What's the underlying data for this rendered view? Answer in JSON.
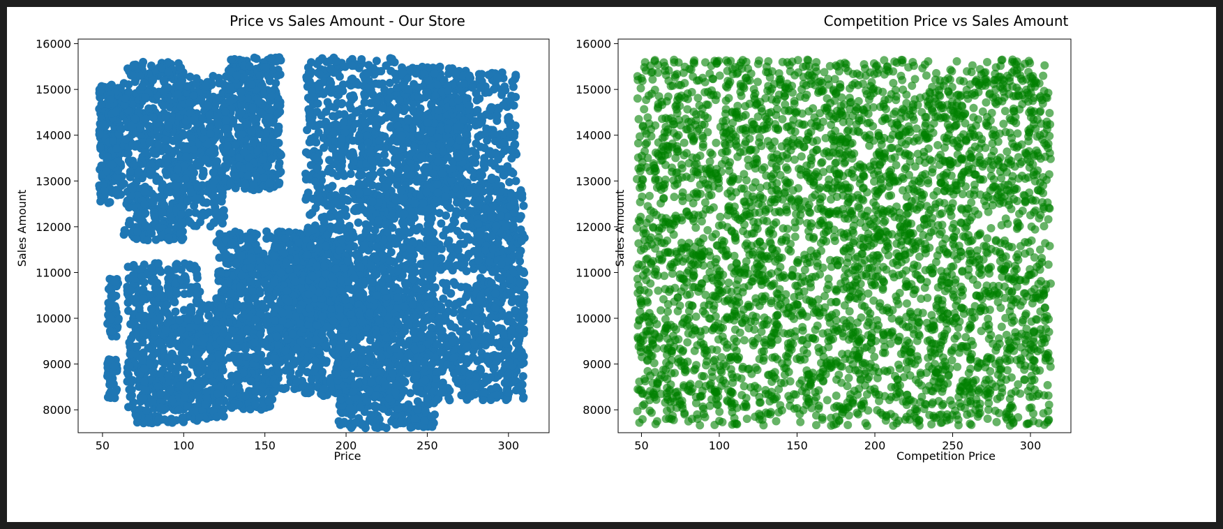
{
  "chart_data": [
    {
      "type": "scatter",
      "title": "Price vs Sales Amount - Our Store",
      "xlabel": "Price",
      "ylabel": "Sales Amount",
      "xlim": [
        35,
        325
      ],
      "ylim": [
        7500,
        16100
      ],
      "xticks": [
        50,
        100,
        150,
        200,
        250,
        300
      ],
      "yticks": [
        8000,
        9000,
        10000,
        11000,
        12000,
        13000,
        14000,
        15000,
        16000
      ],
      "color": "#1f77b4",
      "alpha": 1.0,
      "grid": false,
      "clusters": [
        {
          "x": [
            48,
            62
          ],
          "y": [
            12500,
            15100
          ],
          "n": 260
        },
        {
          "x": [
            53,
            60
          ],
          "y": [
            9600,
            10900
          ],
          "n": 50
        },
        {
          "x": [
            53,
            59
          ],
          "y": [
            8250,
            9100
          ],
          "n": 45
        },
        {
          "x": [
            63,
            100
          ],
          "y": [
            11700,
            15600
          ],
          "n": 520
        },
        {
          "x": [
            65,
            110
          ],
          "y": [
            7700,
            11200
          ],
          "n": 560
        },
        {
          "x": [
            95,
            125
          ],
          "y": [
            12000,
            15300
          ],
          "n": 360
        },
        {
          "x": [
            108,
            125
          ],
          "y": [
            7800,
            10300
          ],
          "n": 220
        },
        {
          "x": [
            125,
            160
          ],
          "y": [
            12800,
            15700
          ],
          "n": 460
        },
        {
          "x": [
            120,
            175
          ],
          "y": [
            9300,
            11900
          ],
          "n": 560
        },
        {
          "x": [
            128,
            155
          ],
          "y": [
            8000,
            9200
          ],
          "n": 160
        },
        {
          "x": [
            155,
            200
          ],
          "y": [
            8300,
            11800
          ],
          "n": 520
        },
        {
          "x": [
            175,
            230
          ],
          "y": [
            12200,
            15700
          ],
          "n": 520
        },
        {
          "x": [
            175,
            215
          ],
          "y": [
            9800,
            12100
          ],
          "n": 320
        },
        {
          "x": [
            195,
            255
          ],
          "y": [
            7600,
            10400
          ],
          "n": 760
        },
        {
          "x": [
            215,
            255
          ],
          "y": [
            10200,
            12700
          ],
          "n": 360
        },
        {
          "x": [
            230,
            275
          ],
          "y": [
            12500,
            15500
          ],
          "n": 520
        },
        {
          "x": [
            250,
            305
          ],
          "y": [
            11000,
            15400
          ],
          "n": 520
        },
        {
          "x": [
            255,
            310
          ],
          "y": [
            8200,
            10800
          ],
          "n": 460
        },
        {
          "x": [
            280,
            310
          ],
          "y": [
            10500,
            12800
          ],
          "n": 200
        }
      ]
    },
    {
      "type": "scatter",
      "title": "Competition Price vs Sales Amount",
      "xlabel": "Competition Price",
      "ylabel": "Sales Amount",
      "xlim": [
        35,
        326
      ],
      "ylim": [
        7500,
        16100
      ],
      "xticks": [
        50,
        100,
        150,
        200,
        250,
        300
      ],
      "yticks": [
        8000,
        9000,
        10000,
        11000,
        12000,
        13000,
        14000,
        15000,
        16000
      ],
      "color": "#008000",
      "alpha": 0.6,
      "grid": false,
      "clusters": [
        {
          "x": [
            47,
            313
          ],
          "y": [
            7650,
            15650
          ],
          "n": 3800
        }
      ]
    }
  ]
}
